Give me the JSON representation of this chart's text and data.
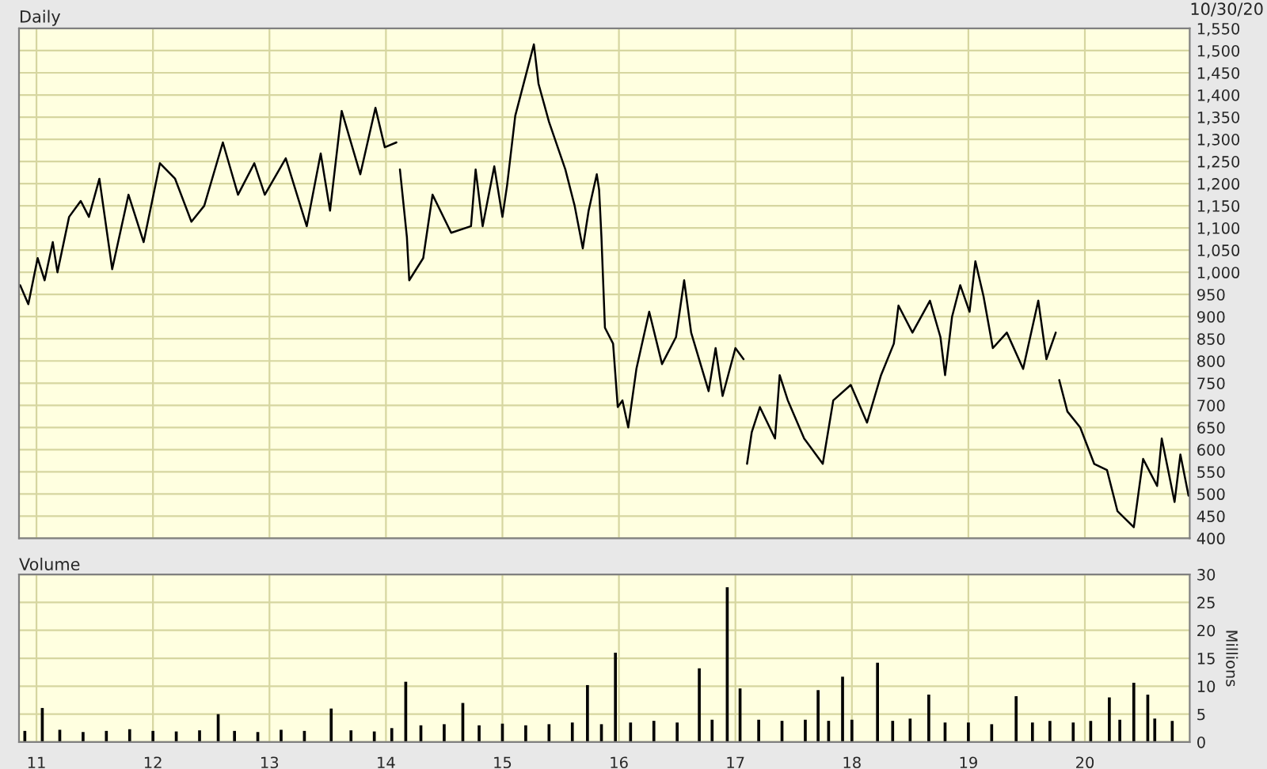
{
  "chart_data": [
    {
      "type": "line",
      "title": "Daily",
      "annotations": [
        "10/30/20"
      ],
      "grid": true,
      "legend": false,
      "marker": "none",
      "line_style": "solid",
      "tick_labels": "y",
      "xlim": [
        2010.85,
        2020.9
      ],
      "xticks": [
        {
          "value": 2011,
          "label": null
        },
        {
          "value": 2012,
          "label": null
        },
        {
          "value": 2013,
          "label": null
        },
        {
          "value": 2014,
          "label": null
        },
        {
          "value": 2015,
          "label": null
        },
        {
          "value": 2016,
          "label": null
        },
        {
          "value": 2017,
          "label": null
        },
        {
          "value": 2018,
          "label": null
        },
        {
          "value": 2019,
          "label": null
        },
        {
          "value": 2020,
          "label": null
        }
      ],
      "ylim": [
        400,
        1550
      ],
      "yticks": [
        400,
        450,
        500,
        550,
        600,
        650,
        700,
        750,
        800,
        850,
        900,
        950,
        {
          "value": 1000,
          "label": "1,000"
        },
        {
          "value": 1050,
          "label": "1,050"
        },
        {
          "value": 1100,
          "label": "1,100"
        },
        {
          "value": 1150,
          "label": "1,150"
        },
        {
          "value": 1200,
          "label": "1,200"
        },
        {
          "value": 1250,
          "label": "1,250"
        },
        {
          "value": 1300,
          "label": "1,300"
        },
        {
          "value": 1350,
          "label": "1,350"
        },
        {
          "value": 1400,
          "label": "1,400"
        },
        {
          "value": 1450,
          "label": "1,450"
        },
        {
          "value": 1500,
          "label": "1,500"
        },
        {
          "value": 1550,
          "label": "1,550"
        }
      ],
      "series": [
        {
          "color": "#000000",
          "x": [
            2010.86,
            2010.93,
            2011.01,
            2011.07,
            2011.14,
            2011.18,
            2011.28,
            2011.38,
            2011.45,
            2011.54,
            2011.65,
            2011.79,
            2011.92,
            2012.06,
            2012.19,
            2012.33,
            2012.44,
            2012.6,
            2012.73,
            2012.87,
            2012.96,
            2013.14,
            2013.32,
            2013.44,
            2013.52,
            2013.62,
            2013.78,
            2013.91,
            2013.99,
            2014.09,
            2014.1,
            2014.12,
            2014.18,
            2014.2,
            2014.32,
            2014.4,
            2014.56,
            2014.73,
            2014.77,
            2014.83,
            2014.93,
            2015.0,
            2015.04,
            2015.11,
            2015.27,
            2015.31,
            2015.4,
            2015.54,
            2015.62,
            2015.69,
            2015.74,
            2015.81,
            2015.83,
            2015.85,
            2015.88,
            2015.95,
            2015.99,
            2016.03,
            2016.08,
            2016.15,
            2016.26,
            2016.37,
            2016.49,
            2016.56,
            2016.62,
            2016.77,
            2016.83,
            2016.89,
            2017.0,
            2017.07,
            2017.08,
            2017.1,
            2017.14,
            2017.21,
            2017.34,
            2017.38,
            2017.45,
            2017.59,
            2017.75,
            2017.84,
            2017.99,
            2018.13,
            2018.25,
            2018.36,
            2018.4,
            2018.52,
            2018.67,
            2018.76,
            2018.8,
            2018.86,
            2018.93,
            2019.01,
            2019.06,
            2019.13,
            2019.21,
            2019.33,
            2019.47,
            2019.6,
            2019.67,
            2019.75,
            2019.76,
            2019.78,
            2019.85,
            2019.96,
            2020.08,
            2020.19,
            2020.28,
            2020.42,
            2020.5,
            2020.62,
            2020.66,
            2020.77,
            2020.82,
            2020.89
          ],
          "values": [
            971,
            928,
            1032,
            982,
            1068,
            1000,
            1125,
            1161,
            1125,
            1211,
            1007,
            1175,
            1068,
            1246,
            1211,
            1114,
            1150,
            1293,
            1175,
            1246,
            1175,
            1257,
            1104,
            1268,
            1139,
            1364,
            1221,
            1371,
            1282,
            1293,
            null,
            1232,
            1079,
            982,
            1032,
            1175,
            1089,
            1104,
            1232,
            1104,
            1239,
            1125,
            1196,
            1353,
            1514,
            1425,
            1339,
            1232,
            1150,
            1054,
            1139,
            1221,
            1186,
            1079,
            875,
            839,
            696,
            711,
            650,
            782,
            911,
            793,
            854,
            982,
            864,
            732,
            829,
            721,
            829,
            804,
            null,
            568,
            639,
            696,
            625,
            768,
            711,
            625,
            568,
            711,
            746,
            661,
            768,
            839,
            925,
            864,
            936,
            854,
            768,
            900,
            971,
            911,
            1025,
            946,
            829,
            864,
            782,
            936,
            804,
            864,
            null,
            757,
            686,
            650,
            568,
            554,
            461,
            425,
            579,
            518,
            625,
            482,
            589,
            496
          ]
        }
      ]
    },
    {
      "type": "bar",
      "title": "Volume",
      "ylabel": "Millions",
      "grid": true,
      "legend": false,
      "xlim": [
        2010.85,
        2020.9
      ],
      "xticks": [
        {
          "value": 2011,
          "label": "11"
        },
        {
          "value": 2012,
          "label": "12"
        },
        {
          "value": 2013,
          "label": "13"
        },
        {
          "value": 2014,
          "label": "14"
        },
        {
          "value": 2015,
          "label": "15"
        },
        {
          "value": 2016,
          "label": "16"
        },
        {
          "value": 2017,
          "label": "17"
        },
        {
          "value": 2018,
          "label": "18"
        },
        {
          "value": 2019,
          "label": "19"
        },
        {
          "value": 2020,
          "label": "20"
        }
      ],
      "ylim": [
        0,
        30
      ],
      "yticks": [
        0,
        5,
        10,
        15,
        20,
        25,
        30
      ],
      "series": [
        {
          "color": "#000000",
          "x": [
            2010.9,
            2011.05,
            2011.2,
            2011.4,
            2011.6,
            2011.8,
            2012.0,
            2012.2,
            2012.4,
            2012.56,
            2012.7,
            2012.9,
            2013.1,
            2013.3,
            2013.53,
            2013.7,
            2013.9,
            2014.05,
            2014.17,
            2014.3,
            2014.5,
            2014.66,
            2014.8,
            2015.0,
            2015.2,
            2015.4,
            2015.6,
            2015.73,
            2015.85,
            2015.97,
            2016.1,
            2016.3,
            2016.5,
            2016.69,
            2016.8,
            2016.93,
            2017.04,
            2017.2,
            2017.4,
            2017.6,
            2017.71,
            2017.8,
            2017.92,
            2018.0,
            2018.22,
            2018.35,
            2018.5,
            2018.66,
            2018.8,
            2019.0,
            2019.2,
            2019.41,
            2019.55,
            2019.7,
            2019.9,
            2020.05,
            2020.21,
            2020.3,
            2020.42,
            2020.54,
            2020.6,
            2020.75
          ],
          "values": [
            2,
            6.1,
            2.2,
            1.8,
            2,
            2.3,
            2,
            1.9,
            2.1,
            5,
            2,
            1.8,
            2.2,
            2,
            6,
            2.1,
            1.9,
            2.5,
            10.8,
            3,
            3.2,
            7,
            3,
            3.3,
            3,
            3.2,
            3.5,
            10.2,
            3.2,
            16,
            3.5,
            3.8,
            3.5,
            13.2,
            4,
            27.7,
            9.6,
            4,
            3.8,
            4,
            9.3,
            3.8,
            11.7,
            4,
            14.2,
            3.8,
            4.2,
            8.5,
            3.5,
            3.5,
            3.2,
            8.2,
            3.5,
            3.8,
            3.5,
            3.8,
            8,
            4,
            10.6,
            8.5,
            4.2,
            3.8
          ]
        }
      ]
    }
  ]
}
